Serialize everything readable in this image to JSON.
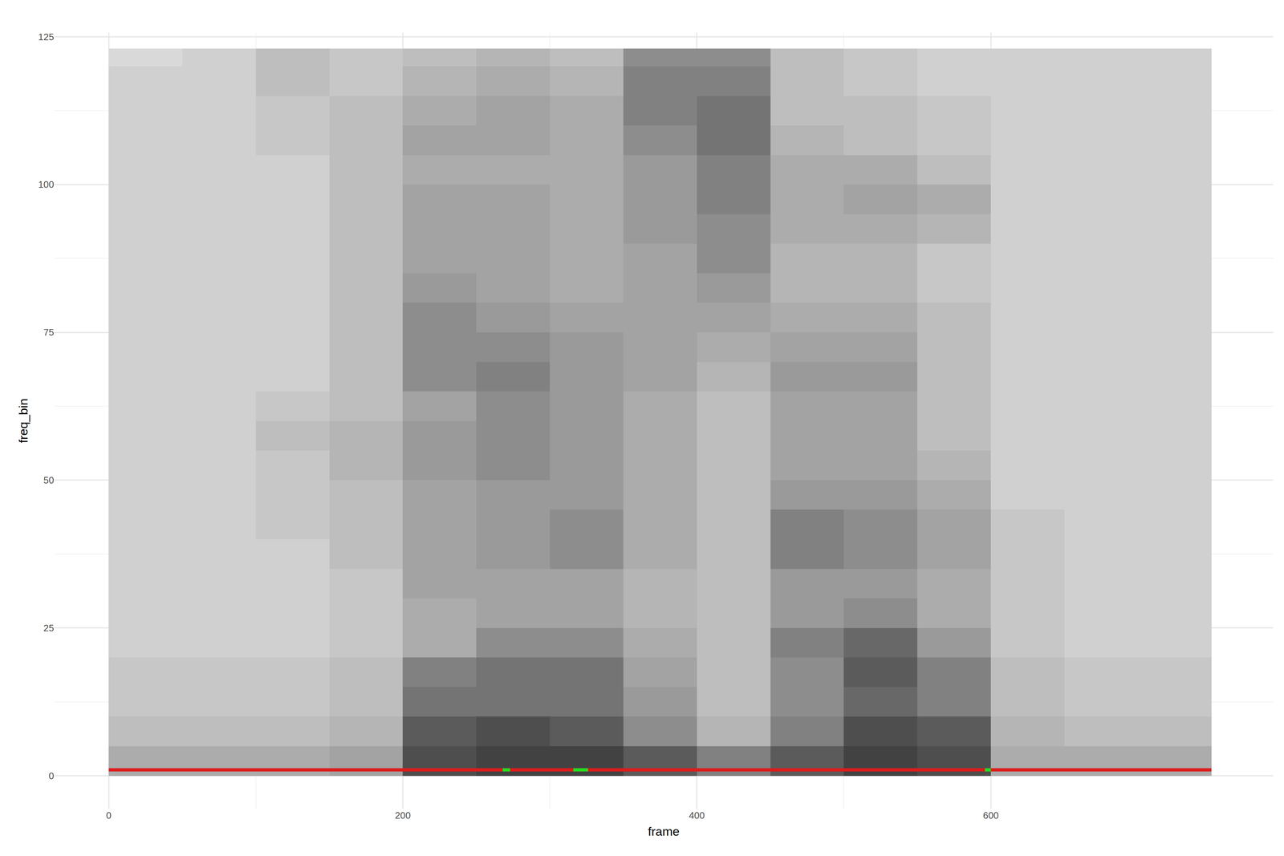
{
  "chart_data": {
    "type": "heatmap",
    "x_label": "frame",
    "y_label": "freq_bin",
    "x": [
      0,
      50,
      100,
      150,
      200,
      250,
      300,
      350,
      400,
      450,
      500,
      550,
      600,
      650,
      700,
      750
    ],
    "y": [
      0,
      5,
      10,
      15,
      20,
      25,
      30,
      35,
      40,
      45,
      50,
      55,
      60,
      65,
      70,
      75,
      80,
      85,
      90,
      95,
      100,
      105,
      110,
      115,
      120,
      123
    ],
    "z": [
      [
        0.4,
        0.4,
        0.4,
        0.45,
        0.8,
        0.85,
        0.85,
        0.75,
        0.6,
        0.75,
        0.85,
        0.8,
        0.4,
        0.4,
        0.4
      ],
      [
        0.3,
        0.3,
        0.3,
        0.35,
        0.75,
        0.8,
        0.75,
        0.55,
        0.35,
        0.6,
        0.8,
        0.75,
        0.35,
        0.3,
        0.3
      ],
      [
        0.25,
        0.25,
        0.25,
        0.3,
        0.65,
        0.65,
        0.65,
        0.5,
        0.3,
        0.55,
        0.7,
        0.6,
        0.3,
        0.25,
        0.25
      ],
      [
        0.25,
        0.25,
        0.25,
        0.3,
        0.6,
        0.65,
        0.65,
        0.45,
        0.3,
        0.55,
        0.75,
        0.6,
        0.3,
        0.25,
        0.25
      ],
      [
        0.2,
        0.2,
        0.2,
        0.25,
        0.4,
        0.55,
        0.55,
        0.4,
        0.3,
        0.6,
        0.7,
        0.5,
        0.25,
        0.2,
        0.2
      ],
      [
        0.2,
        0.2,
        0.2,
        0.25,
        0.4,
        0.45,
        0.45,
        0.35,
        0.3,
        0.5,
        0.55,
        0.4,
        0.25,
        0.2,
        0.2
      ],
      [
        0.2,
        0.2,
        0.2,
        0.25,
        0.45,
        0.45,
        0.45,
        0.35,
        0.3,
        0.5,
        0.5,
        0.4,
        0.25,
        0.2,
        0.2
      ],
      [
        0.2,
        0.2,
        0.2,
        0.3,
        0.45,
        0.5,
        0.55,
        0.4,
        0.3,
        0.6,
        0.55,
        0.45,
        0.25,
        0.2,
        0.2
      ],
      [
        0.2,
        0.2,
        0.25,
        0.3,
        0.45,
        0.5,
        0.55,
        0.4,
        0.3,
        0.6,
        0.55,
        0.45,
        0.25,
        0.2,
        0.2
      ],
      [
        0.2,
        0.2,
        0.25,
        0.3,
        0.45,
        0.5,
        0.5,
        0.4,
        0.3,
        0.5,
        0.5,
        0.4,
        0.2,
        0.2,
        0.2
      ],
      [
        0.2,
        0.2,
        0.25,
        0.35,
        0.5,
        0.55,
        0.5,
        0.4,
        0.3,
        0.45,
        0.45,
        0.35,
        0.2,
        0.2,
        0.2
      ],
      [
        0.2,
        0.2,
        0.3,
        0.35,
        0.5,
        0.55,
        0.5,
        0.4,
        0.3,
        0.45,
        0.45,
        0.3,
        0.2,
        0.2,
        0.2
      ],
      [
        0.2,
        0.2,
        0.25,
        0.3,
        0.45,
        0.55,
        0.5,
        0.4,
        0.3,
        0.45,
        0.45,
        0.3,
        0.2,
        0.2,
        0.2
      ],
      [
        0.2,
        0.2,
        0.2,
        0.3,
        0.55,
        0.6,
        0.5,
        0.45,
        0.35,
        0.5,
        0.5,
        0.3,
        0.2,
        0.2,
        0.2
      ],
      [
        0.2,
        0.2,
        0.2,
        0.3,
        0.55,
        0.55,
        0.5,
        0.45,
        0.4,
        0.45,
        0.45,
        0.3,
        0.2,
        0.2,
        0.2
      ],
      [
        0.2,
        0.2,
        0.2,
        0.3,
        0.55,
        0.5,
        0.45,
        0.45,
        0.45,
        0.4,
        0.4,
        0.3,
        0.2,
        0.2,
        0.2
      ],
      [
        0.2,
        0.2,
        0.2,
        0.3,
        0.5,
        0.45,
        0.4,
        0.45,
        0.5,
        0.35,
        0.35,
        0.25,
        0.2,
        0.2,
        0.2
      ],
      [
        0.2,
        0.2,
        0.2,
        0.3,
        0.45,
        0.45,
        0.4,
        0.45,
        0.55,
        0.35,
        0.35,
        0.25,
        0.2,
        0.2,
        0.2
      ],
      [
        0.2,
        0.2,
        0.2,
        0.3,
        0.45,
        0.45,
        0.4,
        0.5,
        0.55,
        0.4,
        0.4,
        0.35,
        0.2,
        0.2,
        0.2
      ],
      [
        0.2,
        0.2,
        0.2,
        0.3,
        0.45,
        0.45,
        0.4,
        0.5,
        0.6,
        0.4,
        0.45,
        0.4,
        0.2,
        0.2,
        0.2
      ],
      [
        0.2,
        0.2,
        0.2,
        0.3,
        0.4,
        0.4,
        0.4,
        0.5,
        0.6,
        0.4,
        0.4,
        0.3,
        0.2,
        0.2,
        0.2
      ],
      [
        0.2,
        0.2,
        0.25,
        0.3,
        0.45,
        0.45,
        0.4,
        0.55,
        0.65,
        0.35,
        0.3,
        0.25,
        0.2,
        0.2,
        0.2
      ],
      [
        0.2,
        0.2,
        0.25,
        0.3,
        0.4,
        0.45,
        0.4,
        0.6,
        0.65,
        0.3,
        0.3,
        0.25,
        0.2,
        0.2,
        0.2
      ],
      [
        0.2,
        0.2,
        0.3,
        0.25,
        0.35,
        0.4,
        0.35,
        0.6,
        0.6,
        0.3,
        0.25,
        0.2,
        0.2,
        0.2,
        0.2
      ],
      [
        0.15,
        0.2,
        0.3,
        0.25,
        0.3,
        0.35,
        0.3,
        0.55,
        0.55,
        0.3,
        0.25,
        0.2,
        0.2,
        0.2,
        0.2
      ]
    ],
    "zlim": [
      0,
      1
    ],
    "xlim": [
      -37,
      792
    ],
    "ylim": [
      -5.6,
      125.7
    ],
    "xticks": [
      0,
      200,
      400,
      600
    ],
    "yticks": [
      0,
      25,
      50,
      75,
      100,
      125
    ],
    "grid": true,
    "series": [
      {
        "type": "line",
        "color": "#dd1c1c",
        "x": [
          0,
          750
        ],
        "values": [
          1,
          1
        ]
      },
      {
        "type": "line",
        "color": "#22dd22",
        "x": [
          268,
          273,
          null,
          316,
          326,
          null,
          596,
          600
        ],
        "values": [
          1,
          1,
          null,
          1,
          1,
          null,
          1,
          1
        ]
      }
    ]
  }
}
